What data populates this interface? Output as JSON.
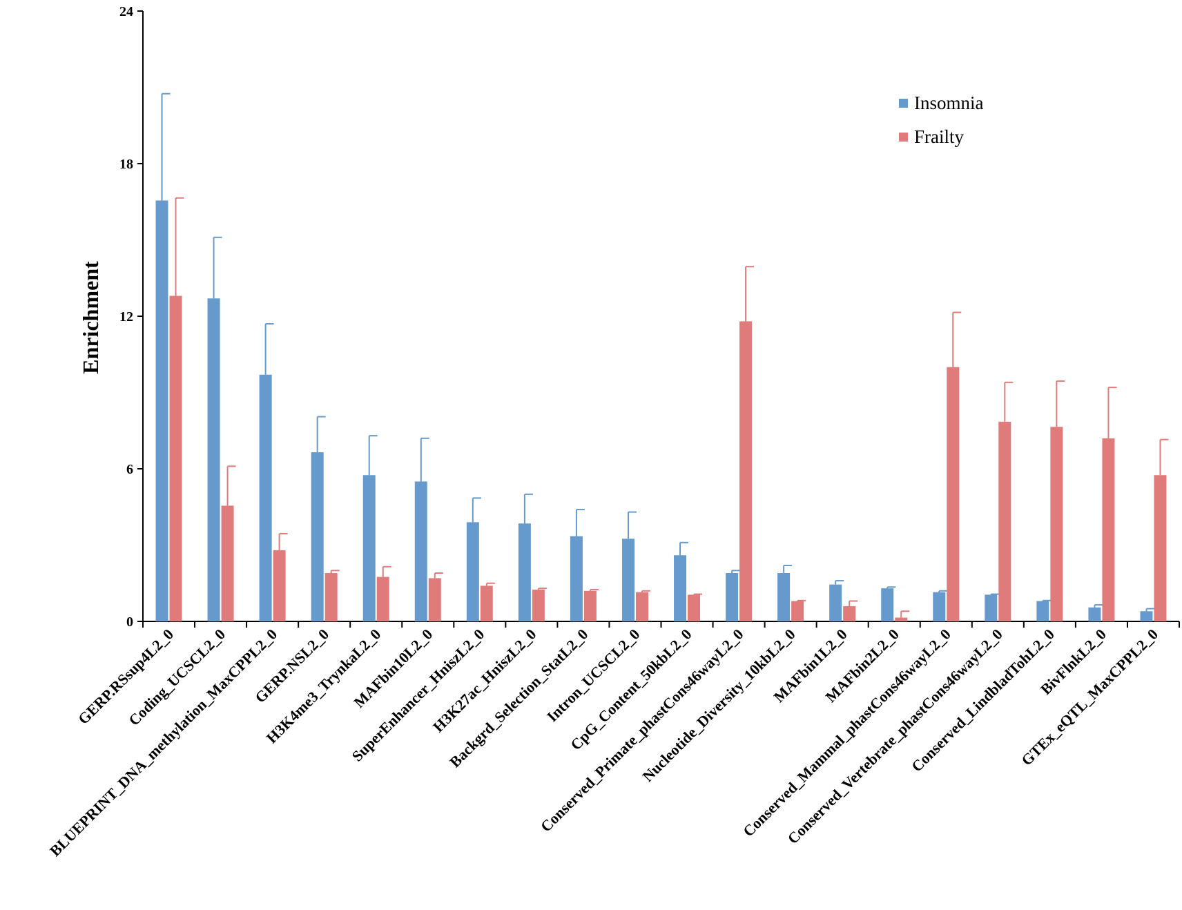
{
  "chart_data": {
    "type": "bar",
    "title": "",
    "xlabel": "",
    "ylabel": "Enrichment",
    "ylim": [
      0,
      24
    ],
    "yticks": [
      0,
      6,
      12,
      18,
      24
    ],
    "legend_position": "top-right",
    "categories": [
      "GERP.RSsup4L2_0",
      "Coding_UCSCL2_0",
      "BLUEPRINT_DNA_methylation_MaxCPPL2_0",
      "GERP.NSL2_0",
      "H3K4me3_TrynkaL2_0",
      "MAFbin10L2_0",
      "SuperEnhancer_HniszL2_0",
      "H3K27ac_HniszL2_0",
      "Backgrd_Selection_StatL2_0",
      "Intron_UCSCL2_0",
      "CpG_Content_50kbL2_0",
      "Conserved_Primate_phastCons46wayL2_0",
      "Nucleotide_Diversity_10kbL2_0",
      "MAFbin1L2_0",
      "MAFbin2L2_0",
      "Conserved_Mammal_phastCons46wayL2_0",
      "Conserved_Vertebrate_phastCons46wayL2_0",
      "Conserved_LindbladTohL2_0",
      "BivFlnkL2_0",
      "GTEx_eQTL_MaxCPPL2_0"
    ],
    "series": [
      {
        "name": "Insomnia",
        "color": "#6699cc",
        "values": [
          16.55,
          12.7,
          9.7,
          6.65,
          5.75,
          5.5,
          3.9,
          3.85,
          3.35,
          3.25,
          2.6,
          1.9,
          1.9,
          1.45,
          1.3,
          1.15,
          1.05,
          0.8,
          0.55,
          0.4
        ],
        "error": [
          4.2,
          2.4,
          2.0,
          1.4,
          1.55,
          1.7,
          0.95,
          1.15,
          1.05,
          1.05,
          0.5,
          0.1,
          0.3,
          0.15,
          0.05,
          0.05,
          0.02,
          0.02,
          0.1,
          0.1
        ]
      },
      {
        "name": "Frailty",
        "color": "#e07b7b",
        "values": [
          12.8,
          4.55,
          2.8,
          1.9,
          1.75,
          1.7,
          1.4,
          1.25,
          1.2,
          1.15,
          1.05,
          11.8,
          0.8,
          0.6,
          0.15,
          10.0,
          7.85,
          7.65,
          7.2,
          5.75
        ],
        "error": [
          3.85,
          1.55,
          0.65,
          0.1,
          0.4,
          0.2,
          0.1,
          0.05,
          0.05,
          0.05,
          0.02,
          2.15,
          0.02,
          0.2,
          0.25,
          2.15,
          1.55,
          1.8,
          2.0,
          1.4
        ]
      }
    ]
  }
}
